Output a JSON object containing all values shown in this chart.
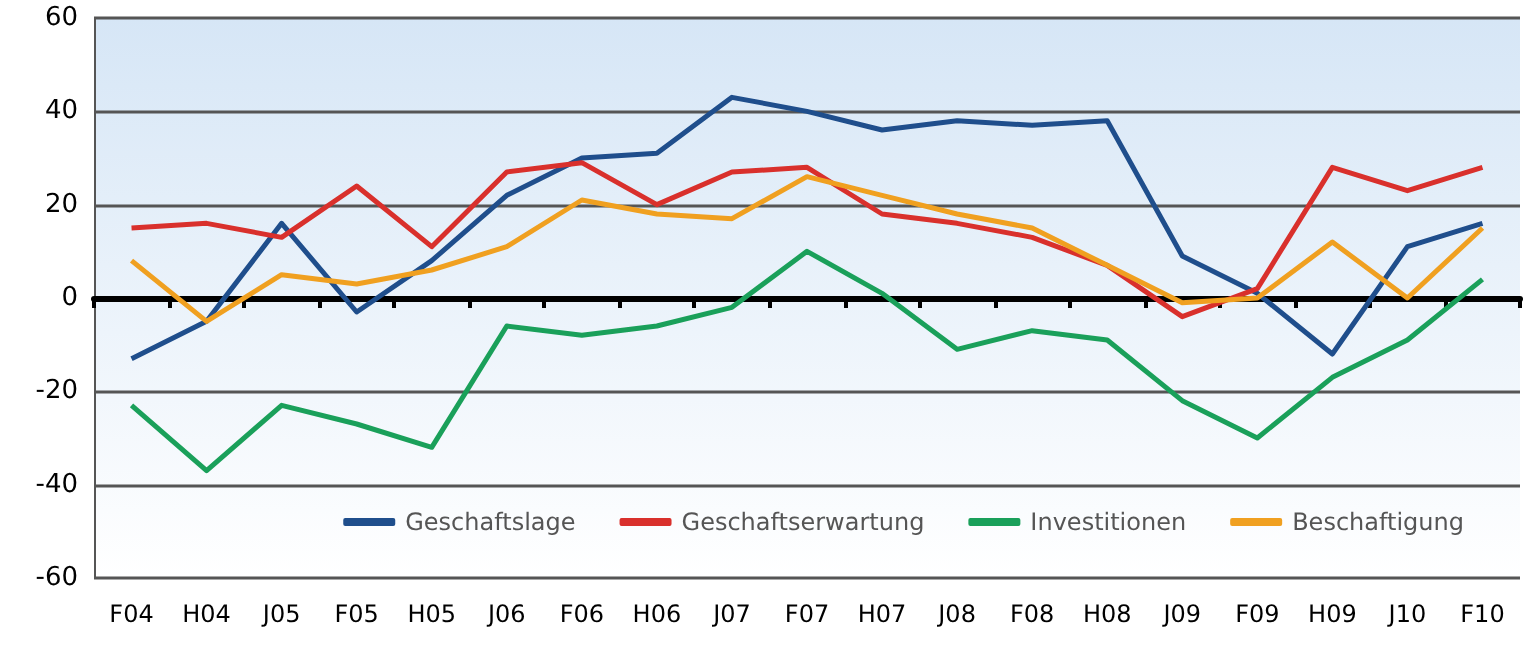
{
  "chart_data": {
    "type": "line",
    "categories": [
      "F04",
      "H04",
      "J05",
      "F05",
      "H05",
      "J06",
      "F06",
      "H06",
      "J07",
      "F07",
      "H07",
      "J08",
      "F08",
      "H08",
      "J09",
      "F09",
      "H09",
      "J10",
      "F10"
    ],
    "series": [
      {
        "name": "Geschaftslage",
        "color": "#1f4e8c",
        "values": [
          -13,
          -5,
          16,
          -3,
          8,
          22,
          30,
          31,
          43,
          40,
          36,
          38,
          37,
          38,
          9,
          1,
          -12,
          11,
          16
        ]
      },
      {
        "name": "Geschaftserwartung",
        "color": "#d9302c",
        "values": [
          15,
          16,
          13,
          24,
          11,
          27,
          29,
          20,
          27,
          28,
          18,
          16,
          13,
          7,
          -4,
          2,
          28,
          23,
          28
        ]
      },
      {
        "name": "Investitionen",
        "color": "#1aa05a",
        "values": [
          -23,
          -37,
          -23,
          -27,
          -32,
          -6,
          -8,
          -6,
          -2,
          10,
          1,
          -11,
          -7,
          -9,
          -22,
          -30,
          -17,
          -9,
          4
        ]
      },
      {
        "name": "Beschaftigung",
        "color": "#f0a020",
        "values": [
          8,
          -5,
          5,
          3,
          6,
          11,
          21,
          18,
          17,
          26,
          22,
          18,
          15,
          7,
          -1,
          0,
          12,
          0,
          15
        ]
      }
    ],
    "ylim": [
      -60,
      60
    ],
    "yticks": [
      -60,
      -40,
      -20,
      0,
      20,
      40,
      60
    ],
    "grid": "y",
    "legend": "bottom right",
    "marker": "none",
    "line_style": "solid"
  }
}
